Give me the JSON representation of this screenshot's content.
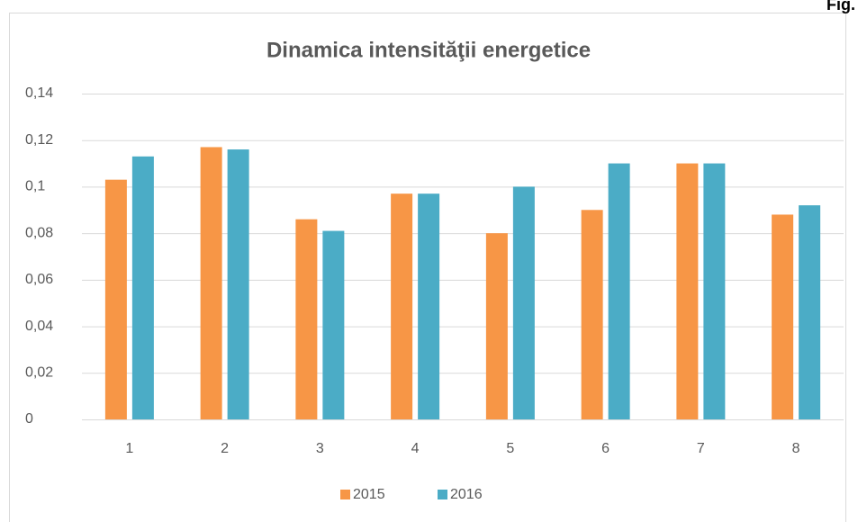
{
  "figure_label": "Fig.",
  "chart_data": {
    "type": "bar",
    "title": "Dinamica intensităţii energetice",
    "categories": [
      "1",
      "2",
      "3",
      "4",
      "5",
      "6",
      "7",
      "8"
    ],
    "series": [
      {
        "name": "2015",
        "color": "#f79646",
        "values": [
          0.103,
          0.117,
          0.086,
          0.097,
          0.08,
          0.09,
          0.11,
          0.088
        ]
      },
      {
        "name": "2016",
        "color": "#4bacc6",
        "values": [
          0.113,
          0.116,
          0.081,
          0.097,
          0.1,
          0.11,
          0.11,
          0.092
        ]
      }
    ],
    "ylim": [
      0,
      0.14
    ],
    "yticks": [
      0,
      {
        "value": 0.02,
        "label": "0,02"
      },
      {
        "value": 0.04,
        "label": "0,04"
      },
      {
        "value": 0.06,
        "label": "0,06"
      },
      {
        "value": 0.08,
        "label": "0,08"
      },
      {
        "value": 0.1,
        "label": "0,1"
      },
      {
        "value": 0.12,
        "label": "0,12"
      },
      {
        "value": 0.14,
        "label": "0,14"
      }
    ],
    "grid": true,
    "legend": "bottom"
  }
}
